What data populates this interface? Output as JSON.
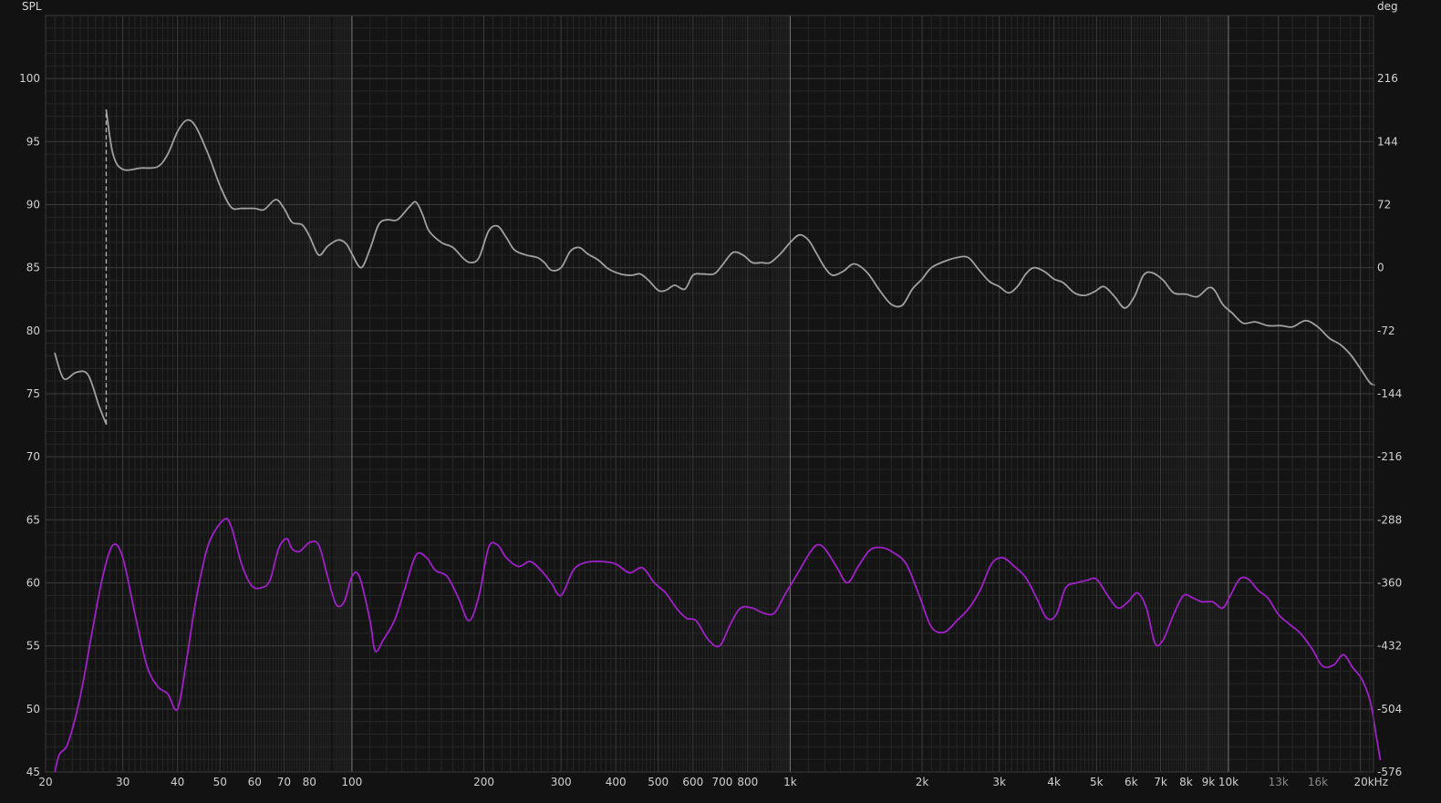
{
  "chart_data": {
    "type": "line",
    "title": "",
    "x_unit": "Hz",
    "x_scale": "log",
    "xlim": [
      20,
      20000
    ],
    "y_left": {
      "label": "SPL",
      "lim": [
        45,
        105
      ],
      "ticks": [
        45,
        50,
        55,
        60,
        65,
        70,
        75,
        80,
        85,
        90,
        95,
        100
      ]
    },
    "y_right": {
      "label": "deg",
      "lim": [
        -576,
        288
      ],
      "ticks": [
        -576,
        -504,
        -432,
        -360,
        -288,
        -216,
        -144,
        -72,
        0,
        72,
        144,
        216
      ]
    },
    "x_ticks": [
      {
        "v": 20,
        "label": "20"
      },
      {
        "v": 30,
        "label": "30"
      },
      {
        "v": 40,
        "label": "40"
      },
      {
        "v": 50,
        "label": "50"
      },
      {
        "v": 60,
        "label": "60"
      },
      {
        "v": 70,
        "label": "70"
      },
      {
        "v": 80,
        "label": "80"
      },
      {
        "v": 100,
        "label": "100"
      },
      {
        "v": 200,
        "label": "200"
      },
      {
        "v": 300,
        "label": "300"
      },
      {
        "v": 400,
        "label": "400"
      },
      {
        "v": 500,
        "label": "500"
      },
      {
        "v": 600,
        "label": "600"
      },
      {
        "v": 700,
        "label": "700"
      },
      {
        "v": 800,
        "label": "800"
      },
      {
        "v": 1000,
        "label": "1k"
      },
      {
        "v": 2000,
        "label": "2k"
      },
      {
        "v": 3000,
        "label": "3k"
      },
      {
        "v": 4000,
        "label": "4k"
      },
      {
        "v": 5000,
        "label": "5k"
      },
      {
        "v": 6000,
        "label": "6k"
      },
      {
        "v": 7000,
        "label": "7k"
      },
      {
        "v": 8000,
        "label": "8k"
      },
      {
        "v": 9000,
        "label": "9k"
      },
      {
        "v": 10000,
        "label": "10k"
      },
      {
        "v": 13000,
        "label": "13k",
        "dim": true
      },
      {
        "v": 16000,
        "label": "16k",
        "dim": true
      },
      {
        "v": 20000,
        "label": "20kHz"
      }
    ],
    "grid": true,
    "colors": {
      "background": "#121212",
      "plot_bg": "#141414",
      "grid_major": "#3c3c3c",
      "grid_minor": "#262626",
      "decade": "#7a7a7a",
      "spl": "#a0a0a0",
      "phase": "#a020c8"
    },
    "series": [
      {
        "axis": "left",
        "color": "#a0a0a0",
        "points": [
          [
            21,
            78.2
          ],
          [
            22,
            76.2
          ],
          [
            23.5,
            76.7
          ],
          [
            25,
            76.5
          ],
          [
            26.5,
            74.0
          ],
          [
            27.5,
            72.6
          ],
          [
            27.5,
            97.5
          ],
          [
            28.5,
            94.0
          ],
          [
            30,
            92.8
          ],
          [
            33,
            92.9
          ],
          [
            36,
            93.0
          ],
          [
            38,
            94.0
          ],
          [
            40,
            95.8
          ],
          [
            42,
            96.7
          ],
          [
            44,
            96.2
          ],
          [
            47,
            94.0
          ],
          [
            50,
            91.5
          ],
          [
            53,
            89.8
          ],
          [
            56,
            89.7
          ],
          [
            60,
            89.7
          ],
          [
            63,
            89.6
          ],
          [
            67,
            90.4
          ],
          [
            70,
            89.7
          ],
          [
            73,
            88.6
          ],
          [
            77,
            88.4
          ],
          [
            80,
            87.5
          ],
          [
            84,
            86.0
          ],
          [
            88,
            86.7
          ],
          [
            93,
            87.2
          ],
          [
            97,
            86.9
          ],
          [
            100,
            86.1
          ],
          [
            105,
            85.0
          ],
          [
            110,
            86.5
          ],
          [
            115,
            88.4
          ],
          [
            120,
            88.8
          ],
          [
            127,
            88.8
          ],
          [
            135,
            89.8
          ],
          [
            140,
            90.2
          ],
          [
            145,
            89.2
          ],
          [
            150,
            87.9
          ],
          [
            160,
            87.0
          ],
          [
            170,
            86.6
          ],
          [
            180,
            85.7
          ],
          [
            187,
            85.4
          ],
          [
            195,
            85.8
          ],
          [
            205,
            87.9
          ],
          [
            215,
            88.3
          ],
          [
            225,
            87.4
          ],
          [
            235,
            86.4
          ],
          [
            250,
            86.0
          ],
          [
            265,
            85.8
          ],
          [
            275,
            85.4
          ],
          [
            285,
            84.8
          ],
          [
            300,
            85.0
          ],
          [
            315,
            86.3
          ],
          [
            330,
            86.6
          ],
          [
            345,
            86.1
          ],
          [
            365,
            85.6
          ],
          [
            385,
            84.9
          ],
          [
            410,
            84.5
          ],
          [
            435,
            84.4
          ],
          [
            455,
            84.5
          ],
          [
            475,
            84.0
          ],
          [
            500,
            83.2
          ],
          [
            520,
            83.2
          ],
          [
            545,
            83.6
          ],
          [
            575,
            83.3
          ],
          [
            600,
            84.4
          ],
          [
            630,
            84.5
          ],
          [
            670,
            84.5
          ],
          [
            700,
            85.2
          ],
          [
            740,
            86.2
          ],
          [
            780,
            86.0
          ],
          [
            820,
            85.4
          ],
          [
            860,
            85.4
          ],
          [
            900,
            85.4
          ],
          [
            950,
            86.1
          ],
          [
            1000,
            87.0
          ],
          [
            1050,
            87.6
          ],
          [
            1100,
            87.2
          ],
          [
            1150,
            86.1
          ],
          [
            1200,
            85.0
          ],
          [
            1250,
            84.4
          ],
          [
            1320,
            84.7
          ],
          [
            1400,
            85.3
          ],
          [
            1500,
            84.6
          ],
          [
            1600,
            83.2
          ],
          [
            1700,
            82.1
          ],
          [
            1800,
            82.0
          ],
          [
            1900,
            83.3
          ],
          [
            2000,
            84.1
          ],
          [
            2100,
            85.0
          ],
          [
            2250,
            85.5
          ],
          [
            2400,
            85.8
          ],
          [
            2550,
            85.8
          ],
          [
            2700,
            84.8
          ],
          [
            2850,
            83.9
          ],
          [
            3000,
            83.5
          ],
          [
            3150,
            83.0
          ],
          [
            3300,
            83.5
          ],
          [
            3450,
            84.5
          ],
          [
            3600,
            85.0
          ],
          [
            3800,
            84.7
          ],
          [
            4000,
            84.1
          ],
          [
            4200,
            83.8
          ],
          [
            4450,
            83.0
          ],
          [
            4700,
            82.8
          ],
          [
            4950,
            83.1
          ],
          [
            5200,
            83.5
          ],
          [
            5500,
            82.7
          ],
          [
            5800,
            81.8
          ],
          [
            6100,
            82.7
          ],
          [
            6400,
            84.4
          ],
          [
            6700,
            84.6
          ],
          [
            7100,
            84.0
          ],
          [
            7500,
            83.0
          ],
          [
            8000,
            82.9
          ],
          [
            8500,
            82.7
          ],
          [
            9000,
            83.4
          ],
          [
            9300,
            83.2
          ],
          [
            9700,
            82.1
          ],
          [
            10200,
            81.4
          ],
          [
            10800,
            80.6
          ],
          [
            11500,
            80.7
          ],
          [
            12300,
            80.4
          ],
          [
            13200,
            80.4
          ],
          [
            14000,
            80.3
          ],
          [
            15000,
            80.8
          ],
          [
            16000,
            80.3
          ],
          [
            17000,
            79.4
          ],
          [
            18000,
            78.9
          ],
          [
            19000,
            78.1
          ],
          [
            20000,
            77.0
          ],
          [
            21000,
            75.9
          ],
          [
            21500,
            75.7
          ]
        ]
      },
      {
        "axis": "left",
        "color": "#a020c8",
        "points": [
          [
            21,
            45.0
          ],
          [
            21.5,
            46.4
          ],
          [
            22.5,
            47.3
          ],
          [
            24,
            51.0
          ],
          [
            25.5,
            56.0
          ],
          [
            27,
            60.5
          ],
          [
            28.5,
            63.0
          ],
          [
            30,
            62.0
          ],
          [
            32,
            57.5
          ],
          [
            34,
            53.5
          ],
          [
            36,
            51.8
          ],
          [
            38,
            51.2
          ],
          [
            40,
            50.0
          ],
          [
            42,
            54.0
          ],
          [
            44,
            58.5
          ],
          [
            47,
            63.0
          ],
          [
            51,
            65.0
          ],
          [
            53,
            64.5
          ],
          [
            56,
            61.5
          ],
          [
            59,
            59.8
          ],
          [
            62,
            59.6
          ],
          [
            65,
            60.2
          ],
          [
            68,
            62.7
          ],
          [
            71,
            63.5
          ],
          [
            73,
            62.7
          ],
          [
            76,
            62.5
          ],
          [
            80,
            63.2
          ],
          [
            84,
            63.0
          ],
          [
            88,
            60.5
          ],
          [
            92,
            58.3
          ],
          [
            96,
            58.5
          ],
          [
            100,
            60.5
          ],
          [
            104,
            60.5
          ],
          [
            110,
            57.0
          ],
          [
            113,
            54.6
          ],
          [
            118,
            55.5
          ],
          [
            125,
            57.0
          ],
          [
            132,
            59.5
          ],
          [
            140,
            62.2
          ],
          [
            148,
            62.0
          ],
          [
            155,
            61.0
          ],
          [
            165,
            60.5
          ],
          [
            175,
            58.8
          ],
          [
            185,
            57.0
          ],
          [
            195,
            59.0
          ],
          [
            205,
            62.8
          ],
          [
            215,
            63.0
          ],
          [
            225,
            62.0
          ],
          [
            240,
            61.3
          ],
          [
            255,
            61.7
          ],
          [
            270,
            61.0
          ],
          [
            285,
            60.0
          ],
          [
            300,
            59.0
          ],
          [
            320,
            61.0
          ],
          [
            340,
            61.6
          ],
          [
            370,
            61.7
          ],
          [
            400,
            61.5
          ],
          [
            430,
            60.8
          ],
          [
            460,
            61.2
          ],
          [
            490,
            60.0
          ],
          [
            520,
            59.2
          ],
          [
            550,
            58.0
          ],
          [
            580,
            57.2
          ],
          [
            610,
            57.0
          ],
          [
            650,
            55.5
          ],
          [
            690,
            55.0
          ],
          [
            730,
            56.7
          ],
          [
            770,
            58.0
          ],
          [
            820,
            58.0
          ],
          [
            870,
            57.6
          ],
          [
            920,
            57.6
          ],
          [
            970,
            59.0
          ],
          [
            1030,
            60.5
          ],
          [
            1100,
            62.2
          ],
          [
            1150,
            63.0
          ],
          [
            1200,
            62.7
          ],
          [
            1280,
            61.2
          ],
          [
            1350,
            60.0
          ],
          [
            1430,
            61.3
          ],
          [
            1520,
            62.6
          ],
          [
            1620,
            62.8
          ],
          [
            1720,
            62.4
          ],
          [
            1840,
            61.5
          ],
          [
            1970,
            59.0
          ],
          [
            2100,
            56.5
          ],
          [
            2250,
            56.1
          ],
          [
            2400,
            57.0
          ],
          [
            2560,
            58.0
          ],
          [
            2720,
            59.5
          ],
          [
            2880,
            61.5
          ],
          [
            3050,
            62.0
          ],
          [
            3250,
            61.3
          ],
          [
            3450,
            60.4
          ],
          [
            3650,
            58.8
          ],
          [
            3850,
            57.2
          ],
          [
            4050,
            57.5
          ],
          [
            4250,
            59.6
          ],
          [
            4500,
            60.0
          ],
          [
            4750,
            60.2
          ],
          [
            5000,
            60.3
          ],
          [
            5300,
            59.0
          ],
          [
            5600,
            58.0
          ],
          [
            5900,
            58.5
          ],
          [
            6200,
            59.2
          ],
          [
            6500,
            58.0
          ],
          [
            6800,
            55.2
          ],
          [
            7100,
            55.5
          ],
          [
            7500,
            57.5
          ],
          [
            7900,
            59.0
          ],
          [
            8300,
            58.8
          ],
          [
            8700,
            58.5
          ],
          [
            9200,
            58.5
          ],
          [
            9700,
            58.0
          ],
          [
            10100,
            59.0
          ],
          [
            10600,
            60.3
          ],
          [
            11100,
            60.3
          ],
          [
            11700,
            59.4
          ],
          [
            12300,
            58.8
          ],
          [
            13000,
            57.5
          ],
          [
            13800,
            56.7
          ],
          [
            14600,
            56.0
          ],
          [
            15500,
            54.8
          ],
          [
            16400,
            53.4
          ],
          [
            17400,
            53.5
          ],
          [
            18300,
            54.3
          ],
          [
            19200,
            53.3
          ],
          [
            20200,
            52.3
          ],
          [
            21100,
            50.5
          ],
          [
            21800,
            47.6
          ],
          [
            22200,
            46.0
          ]
        ]
      }
    ],
    "markers": [
      {
        "type": "dashed-vertical",
        "x": 27.5,
        "y_from": 72.6,
        "y_to": 97.5,
        "color": "#b0b0b0"
      }
    ]
  }
}
